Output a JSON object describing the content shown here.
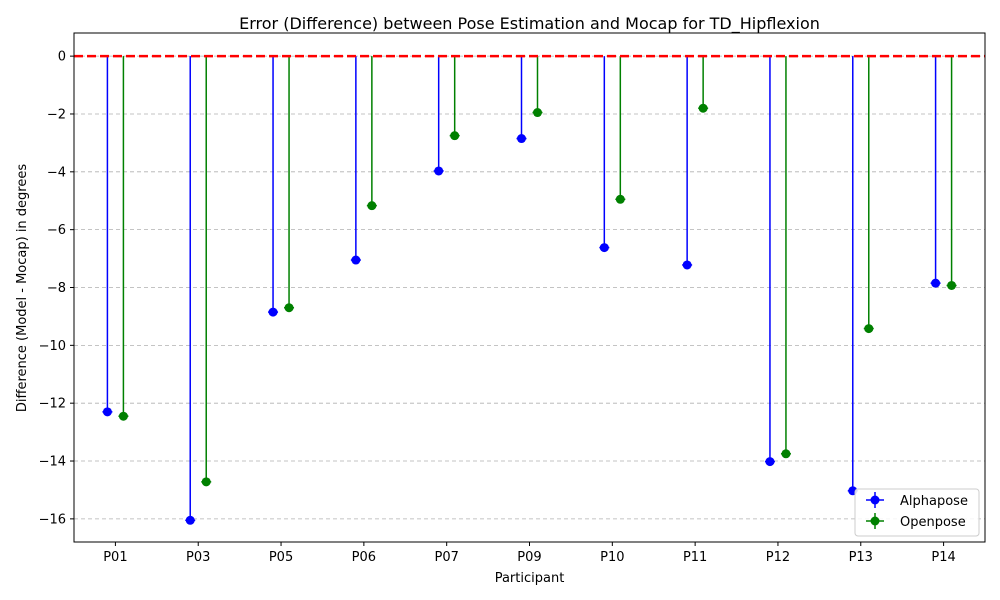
{
  "chart_data": {
    "type": "scatter",
    "title": "Error (Difference) between Pose Estimation and Mocap for TD_Hipflexion",
    "xlabel": "Participant",
    "ylabel": "Difference (Model - Mocap) in degrees",
    "categories": [
      "P01",
      "P03",
      "P05",
      "P06",
      "P07",
      "P09",
      "P10",
      "P11",
      "P12",
      "P13",
      "P14"
    ],
    "ylim": [
      -16.8,
      0.8
    ],
    "yticks": [
      0,
      -2,
      -4,
      -6,
      -8,
      -10,
      -12,
      -14,
      -16
    ],
    "ytick_labels": [
      "0",
      "−2",
      "−4",
      "−6",
      "−8",
      "−10",
      "−12",
      "−14",
      "−16"
    ],
    "reference_line": 0,
    "grid": "y-dashed",
    "legend_position": "lower-right",
    "series": [
      {
        "name": "Alphapose",
        "color": "#0000ff",
        "values": [
          -12.3,
          -16.05,
          -8.85,
          -7.05,
          -3.97,
          -2.85,
          -6.62,
          -7.22,
          -14.02,
          -15.03,
          -7.85
        ]
      },
      {
        "name": "Openpose",
        "color": "#008000",
        "values": [
          -12.45,
          -14.72,
          -8.7,
          -5.17,
          -2.75,
          -1.95,
          -4.95,
          -1.8,
          -13.75,
          -9.42,
          -7.93
        ]
      }
    ],
    "reference_color": "#ff0000"
  }
}
